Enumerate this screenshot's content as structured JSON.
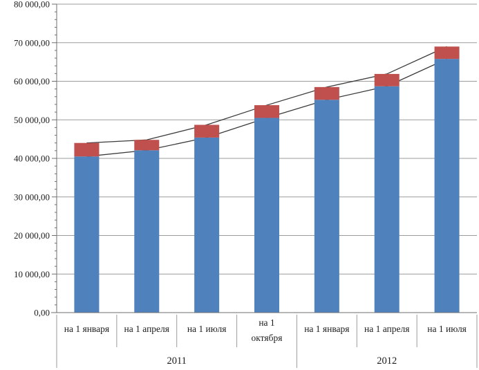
{
  "chart_data": {
    "type": "bar",
    "subtype": "stacked-bars-with-overlay-lines",
    "title": "",
    "legend": "none",
    "grid": "horizontal-major",
    "ylim": [
      0,
      80000
    ],
    "y_major_step": 10000,
    "y_minor_step": 2000,
    "y_tick_labels": [
      "0,00",
      "10 000,00",
      "20 000,00",
      "30 000,00",
      "40 000,00",
      "50 000,00",
      "60 000,00",
      "70 000,00",
      "80 000,00"
    ],
    "categories": [
      {
        "lines": [
          "на 1 января"
        ],
        "group": "2011"
      },
      {
        "lines": [
          "на 1 апреля"
        ],
        "group": "2011"
      },
      {
        "lines": [
          "на 1 июля"
        ],
        "group": "2011"
      },
      {
        "lines": [
          "на 1",
          "октября"
        ],
        "group": "2011"
      },
      {
        "lines": [
          "на 1 января"
        ],
        "group": "2012"
      },
      {
        "lines": [
          "на 1 апреля"
        ],
        "group": "2012"
      },
      {
        "lines": [
          "на 1 июля"
        ],
        "group": "2012"
      }
    ],
    "category_groups": [
      {
        "label": "2011",
        "count": 4
      },
      {
        "label": "2012",
        "count": 3
      }
    ],
    "series": [
      {
        "name": "base-segment",
        "kind": "bar-stacked",
        "color": "#4F81BD",
        "values": [
          40500,
          42100,
          45400,
          50500,
          55200,
          58700,
          65800
        ]
      },
      {
        "name": "top-segment",
        "kind": "bar-stacked",
        "color": "#C0504D",
        "values": [
          3500,
          2700,
          3300,
          3300,
          3300,
          3200,
          3200
        ]
      },
      {
        "name": "lower-line",
        "kind": "line",
        "color": "#3a3a3a",
        "values": [
          40500,
          42100,
          45400,
          50500,
          55200,
          58700,
          65800
        ]
      },
      {
        "name": "upper-line",
        "kind": "line",
        "color": "#3a3a3a",
        "values": [
          44000,
          44800,
          48700,
          53800,
          58500,
          61900,
          69000
        ]
      }
    ]
  },
  "palette": {
    "background": "#ffffff",
    "gridline": "#9b9b9b",
    "axis": "#6e6e6e",
    "table_line": "#9b9b9b",
    "text": "#1c1c1c",
    "bar_blue": "#4F81BD",
    "bar_red": "#C0504D",
    "series_line": "#3a3a3a"
  }
}
